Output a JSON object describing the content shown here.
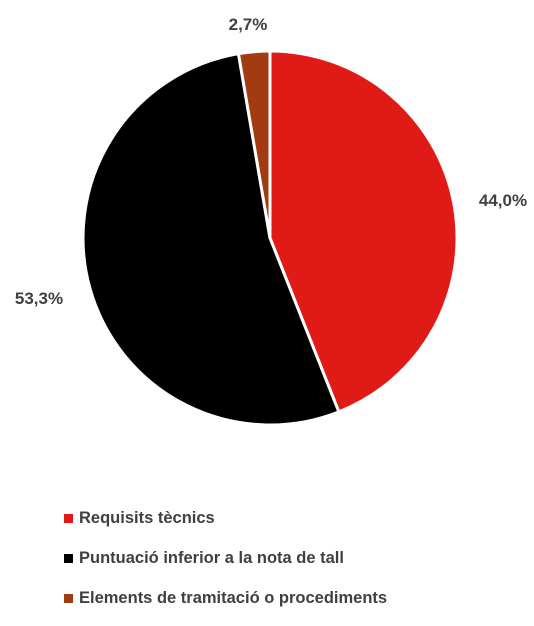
{
  "chart_data": {
    "type": "pie",
    "title": "",
    "slices": [
      {
        "label": "Requisits tècnics",
        "value": 44.0,
        "value_label": "44,0%",
        "color": "#e01a17"
      },
      {
        "label": "Puntuació inferior a la nota de tall",
        "value": 53.3,
        "value_label": "53,3%",
        "color": "#000000"
      },
      {
        "label": "Elements de tramitació o procediments",
        "value": 2.7,
        "value_label": "2,7%",
        "color": "#a23b12"
      }
    ],
    "start_angle": "12 o'clock",
    "direction": "clockwise",
    "legend_position": "bottom-left",
    "label_color": "#404040",
    "slice_border_color": "#ffffff"
  }
}
